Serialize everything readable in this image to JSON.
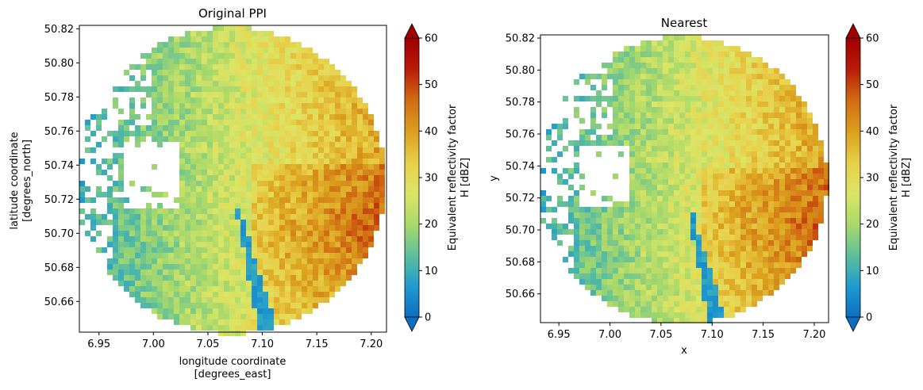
{
  "chart_data": [
    {
      "type": "heatmap",
      "title": "Original PPI",
      "xlabel": [
        "longitude coordinate",
        "[degrees_east]"
      ],
      "ylabel": [
        "latitude coordinate",
        "[degrees_north]"
      ],
      "xlim": [
        6.932,
        7.214
      ],
      "ylim": [
        50.642,
        50.822
      ],
      "xticks": [
        "6.95",
        "7.00",
        "7.05",
        "7.10",
        "7.15",
        "7.20"
      ],
      "yticks": [
        "50.66",
        "50.68",
        "50.70",
        "50.72",
        "50.74",
        "50.76",
        "50.78",
        "50.80",
        "50.82"
      ],
      "center": [
        7.071,
        50.731
      ],
      "max_range_deg": [
        0.142,
        0.09
      ],
      "colorbar": {
        "label": [
          "Equivalent reflectivity factor",
          "H [dBZ]"
        ],
        "ticks": [
          "0",
          "10",
          "20",
          "30",
          "40",
          "50",
          "60"
        ],
        "range": [
          0,
          60
        ],
        "extend": "both",
        "cmap_colors": [
          "#0b6fc0",
          "#1f9bd0",
          "#5dbf9b",
          "#a8d86a",
          "#dbe566",
          "#e8d04a",
          "#dba21f",
          "#d06a12",
          "#b81a0a",
          "#a00000"
        ]
      },
      "grid": false
    },
    {
      "type": "heatmap",
      "title": "Nearest",
      "xlabel": [
        "x"
      ],
      "ylabel": [
        "y"
      ],
      "xlim": [
        6.932,
        7.214
      ],
      "ylim": [
        50.642,
        50.822
      ],
      "xticks": [
        "6.95",
        "7.00",
        "7.05",
        "7.10",
        "7.15",
        "7.20"
      ],
      "yticks": [
        "50.66",
        "50.68",
        "50.70",
        "50.72",
        "50.74",
        "50.76",
        "50.78",
        "50.80",
        "50.82"
      ],
      "center": [
        7.071,
        50.731
      ],
      "max_range_deg": [
        0.142,
        0.09
      ],
      "colorbar": {
        "label": [
          "Equivalent reflectivity factor",
          "H [dBZ]"
        ],
        "ticks": [
          "0",
          "10",
          "20",
          "30",
          "40",
          "50",
          "60"
        ],
        "range": [
          0,
          60
        ],
        "extend": "both",
        "cmap_colors": [
          "#0b6fc0",
          "#1f9bd0",
          "#5dbf9b",
          "#a8d86a",
          "#dbe566",
          "#e8d04a",
          "#dba21f",
          "#d06a12",
          "#b81a0a",
          "#a00000"
        ]
      },
      "grid": false
    }
  ]
}
